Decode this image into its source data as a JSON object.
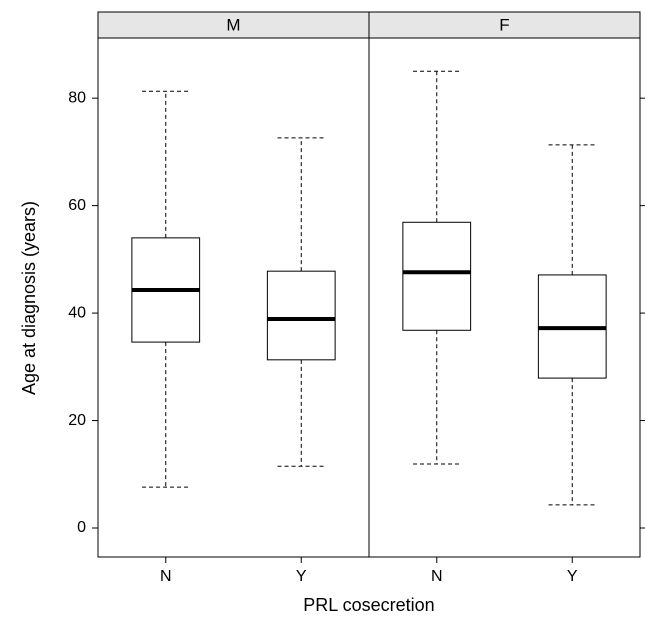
{
  "chart_data": {
    "type": "box",
    "y_label": "Age at diagnosis (years)",
    "x_label": "PRL cosecretion",
    "ylim": [
      -5.4,
      91.2
    ],
    "yticks": [
      0,
      20,
      40,
      60,
      80
    ],
    "panels": [
      {
        "label": "M",
        "categories": [
          "N",
          "Y"
        ],
        "boxes": [
          {
            "min": 7.6,
            "q1": 34.6,
            "median": 44.3,
            "q3": 54,
            "max": 81.3
          },
          {
            "min": 11.5,
            "q1": 31.3,
            "median": 38.9,
            "q3": 47.8,
            "max": 72.6
          }
        ]
      },
      {
        "label": "F",
        "categories": [
          "N",
          "Y"
        ],
        "boxes": [
          {
            "min": 11.9,
            "q1": 36.8,
            "median": 47.6,
            "q3": 56.9,
            "max": 85
          },
          {
            "min": 4.3,
            "q1": 27.9,
            "median": 37.2,
            "q3": 47.1,
            "max": 71.3
          }
        ]
      }
    ]
  }
}
